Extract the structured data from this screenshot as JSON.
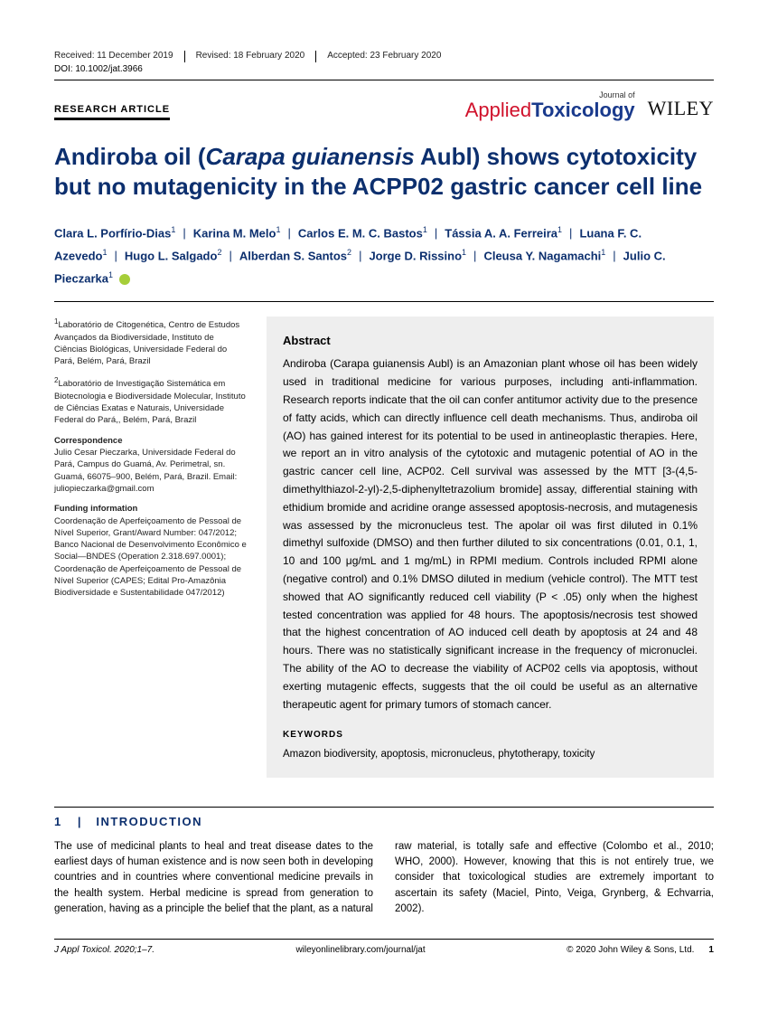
{
  "meta": {
    "received": "Received: 11 December 2019",
    "revised": "Revised: 18 February 2020",
    "accepted": "Accepted: 23 February 2020",
    "doi": "DOI: 10.1002/jat.3966"
  },
  "article_type": "RESEARCH ARTICLE",
  "journal_logo": {
    "prefix": "Journal of",
    "applied": "Applied",
    "toxicology": "Toxicology",
    "publisher": "WILEY"
  },
  "title_pre": "Andiroba oil (",
  "title_italic": "Carapa guianensis",
  "title_post": " Aubl) shows cytotoxicity but no mutagenicity in the ACPP02 gastric cancer cell line",
  "authors_html": "Clara L. Porfírio-Dias<sup>1</sup><span class=\"sep\">|</span>Karina M. Melo<sup>1</sup><span class=\"sep\">|</span>Carlos E. M. C. Bastos<sup>1</sup><span class=\"sep\">|</span>Tássia A. A. Ferreira<sup>1</sup><span class=\"sep\">|</span>Luana F. C. Azevedo<sup>1</sup><span class=\"sep\">|</span>Hugo L. Salgado<sup>2</sup><span class=\"sep\">|</span>Alberdan S. Santos<sup>2</sup><span class=\"sep\">|</span>Jorge D. Rissino<sup>1</sup><span class=\"sep\">|</span>Cleusa Y. Nagamachi<sup>1</sup><span class=\"sep\">|</span>Julio C. Pieczarka<sup>1</sup> <span class=\"orcid\"></span>",
  "affiliations": {
    "a1": "<sup>1</sup>Laboratório de Citogenética, Centro de Estudos Avançados da Biodiversidade, Instituto de Ciências Biológicas, Universidade Federal do Pará, Belém, Pará, Brazil",
    "a2": "<sup>2</sup>Laboratório de Investigação Sistemática em Biotecnologia e Biodiversidade Molecular, Instituto de Ciências Exatas e Naturais, Universidade Federal do Pará,, Belém, Pará, Brazil",
    "corr_label": "Correspondence",
    "corr": "Julio Cesar Pieczarka, Universidade Federal do Pará, Campus do Guamá, Av. Perimetral, sn. Guamá, 66075–900, Belém, Pará, Brazil. Email: juliopieczarka@gmail.com",
    "fund_label": "Funding information",
    "fund": "Coordenação de Aperfeiçoamento de Pessoal de Nível Superior, Grant/Award Number: 047/2012; Banco Nacional de Desenvolvimento Econômico e Social—BNDES (Operation 2.318.697.0001); Coordenação de Aperfeiçoamento de Pessoal de Nível Superior (CAPES; Edital Pro-Amazônia Biodiversidade e Sustentabilidade 047/2012)"
  },
  "abstract": {
    "heading": "Abstract",
    "text": "Andiroba (Carapa guianensis Aubl) is an Amazonian plant whose oil has been widely used in traditional medicine for various purposes, including anti-inflammation. Research reports indicate that the oil can confer antitumor activity due to the presence of fatty acids, which can directly influence cell death mechanisms. Thus, andiroba oil (AO) has gained interest for its potential to be used in antineoplastic therapies. Here, we report an in vitro analysis of the cytotoxic and mutagenic potential of AO in the gastric cancer cell line, ACP02. Cell survival was assessed by the MTT [3-(4,5-dimethylthiazol-2-yl)-2,5-diphenyltetrazolium bromide] assay, differential staining with ethidium bromide and acridine orange assessed apoptosis-necrosis, and mutagenesis was assessed by the micronucleus test. The apolar oil was first diluted in 0.1% dimethyl sulfoxide (DMSO) and then further diluted to six concentrations (0.01, 0.1, 1, 10 and 100 μg/mL and 1 mg/mL) in RPMI medium. Controls included RPMI alone (negative control) and 0.1% DMSO diluted in medium (vehicle control). The MTT test showed that AO significantly reduced cell viability (P < .05) only when the highest tested concentration was applied for 48 hours. The apoptosis/necrosis test showed that the highest concentration of AO induced cell death by apoptosis at 24 and 48 hours. There was no statistically significant increase in the frequency of micronuclei. The ability of the AO to decrease the viability of ACP02 cells via apoptosis, without exerting mutagenic effects, suggests that the oil could be useful as an alternative therapeutic agent for primary tumors of stomach cancer.",
    "kw_heading": "KEYWORDS",
    "keywords": "Amazon biodiversity, apoptosis, micronucleus, phytotherapy, toxicity"
  },
  "section": {
    "num": "1",
    "sep": "|",
    "title": "INTRODUCTION"
  },
  "body": "The use of medicinal plants to heal and treat disease dates to the earliest days of human existence and is now seen both in developing countries and in countries where conventional medicine prevails in the health system. Herbal medicine is spread from generation to generation, having as a principle the belief that the plant, as a natural raw material, is totally safe and effective (Colombo et al., 2010; WHO, 2000). However, knowing that this is not entirely true, we consider that toxicological studies are extremely important to ascertain its safety (Maciel, Pinto, Veiga, Grynberg, & Echvarria, 2002).",
  "footer": {
    "left": "J Appl Toxicol. 2020;1–7.",
    "center": "wileyonlinelibrary.com/journal/jat",
    "right": "© 2020 John Wiley & Sons, Ltd.",
    "page": "1"
  }
}
